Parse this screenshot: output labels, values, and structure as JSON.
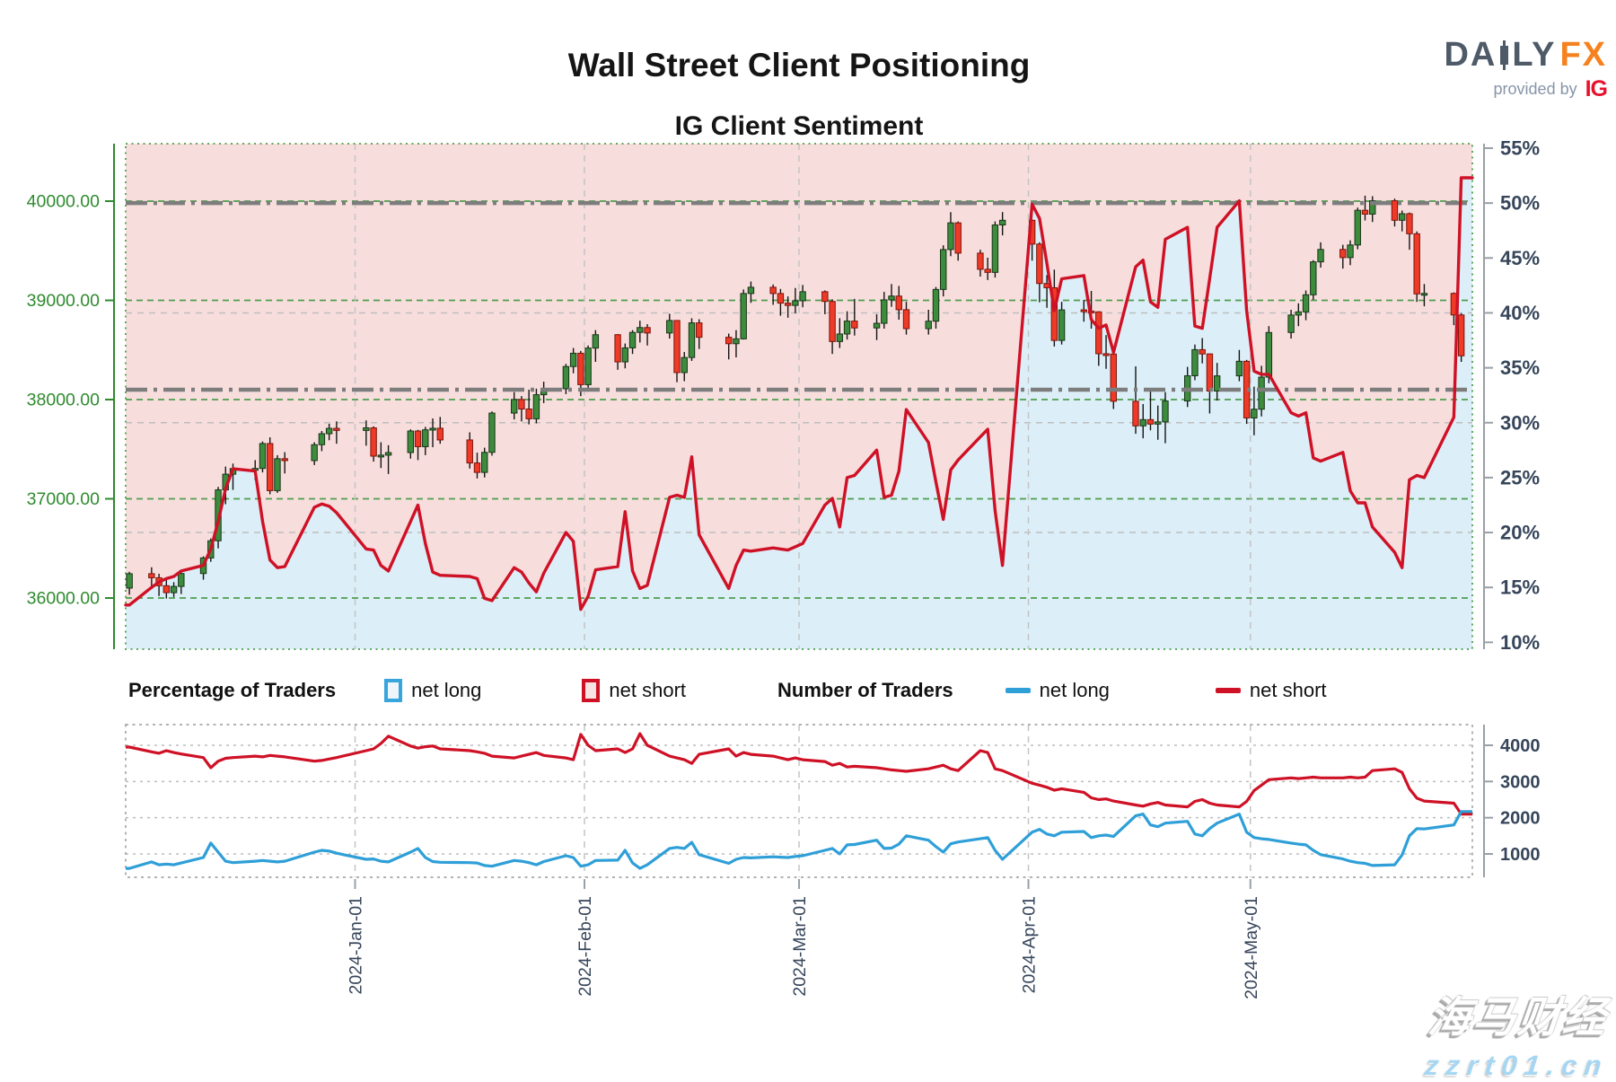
{
  "header": {
    "title": "Wall Street Client Positioning",
    "subtitle": "IG Client Sentiment",
    "logo": {
      "brand_prefix": "DA",
      "brand_mid": "LY",
      "brand_accent": "FX",
      "tagline": "provided by",
      "provider": "IG"
    }
  },
  "legend": {
    "pct_header": "Percentage of Traders",
    "pct_long_label": "net long",
    "pct_short_label": "net short",
    "num_header": "Number of Traders",
    "num_long_label": "net long",
    "num_short_label": "net short"
  },
  "watermark": {
    "line1": "海马财经",
    "line2": "zzrt01.cn"
  },
  "colors": {
    "long_blue": "#2f9fd8",
    "short_red": "#cf1126",
    "candle_up": "#3d8b3d",
    "candle_up_edge": "#173517",
    "candle_down": "#ee3a26",
    "candle_down_edge": "#7c140d",
    "wick": "#141414",
    "fill_long_area": "#dceef7",
    "fill_short_area": "#f8dddd",
    "price_axis_green": "#2e8b2e",
    "grid_green": "#4d9e4d",
    "grid_gray": "#bdbdbd",
    "month_grid": "#c4c4c4",
    "ref_dashdot": "#7d7d7d",
    "navy_text": "#36455a",
    "spine_gray": "#9aa0a6"
  },
  "chart_data": {
    "type": "candlestick+line",
    "title": "Wall Street Client Positioning",
    "subtitle": "IG Client Sentiment",
    "x_axis": {
      "range": [
        "2023-12-01",
        "2024-05-31"
      ],
      "month_ticks": [
        {
          "date": "2024-01-01",
          "label": "2024-Jan-01"
        },
        {
          "date": "2024-02-01",
          "label": "2024-Feb-01"
        },
        {
          "date": "2024-03-01",
          "label": "2024-Mar-01"
        },
        {
          "date": "2024-04-01",
          "label": "2024-Apr-01"
        },
        {
          "date": "2024-05-01",
          "label": "2024-May-01"
        }
      ]
    },
    "price_axis": {
      "side": "left",
      "ticks": [
        {
          "value": 40000,
          "label": "40000.00"
        },
        {
          "value": 39000,
          "label": "39000.00"
        },
        {
          "value": 38000,
          "label": "38000.00"
        },
        {
          "value": 37000,
          "label": "37000.00"
        },
        {
          "value": 36000,
          "label": "36000.00"
        }
      ]
    },
    "pct_axis": {
      "side": "right",
      "range": [
        10,
        55
      ],
      "ticks": [
        {
          "value": 55,
          "label": "55%"
        },
        {
          "value": 50,
          "label": "50%"
        },
        {
          "value": 45,
          "label": "45%"
        },
        {
          "value": 40,
          "label": "40%"
        },
        {
          "value": 35,
          "label": "35%"
        },
        {
          "value": 30,
          "label": "30%"
        },
        {
          "value": 25,
          "label": "25%"
        },
        {
          "value": 20,
          "label": "20%"
        },
        {
          "value": 15,
          "label": "15%"
        },
        {
          "value": 10,
          "label": "10%"
        }
      ],
      "gridlines": [
        40,
        30,
        20
      ],
      "reference_levels": [
        50,
        33
      ]
    },
    "count_axis": {
      "side": "right",
      "ticks": [
        {
          "value": 4000,
          "label": "4000"
        },
        {
          "value": 3000,
          "label": "3000"
        },
        {
          "value": 2000,
          "label": "2000"
        },
        {
          "value": 1000,
          "label": "1000"
        }
      ]
    },
    "dates": [
      "2023-12-01",
      "2023-12-04",
      "2023-12-05",
      "2023-12-06",
      "2023-12-07",
      "2023-12-08",
      "2023-12-11",
      "2023-12-12",
      "2023-12-13",
      "2023-12-14",
      "2023-12-15",
      "2023-12-18",
      "2023-12-19",
      "2023-12-20",
      "2023-12-21",
      "2023-12-22",
      "2023-12-26",
      "2023-12-27",
      "2023-12-28",
      "2023-12-29",
      "2024-01-02",
      "2024-01-03",
      "2024-01-04",
      "2024-01-05",
      "2024-01-08",
      "2024-01-09",
      "2024-01-10",
      "2024-01-11",
      "2024-01-12",
      "2024-01-16",
      "2024-01-17",
      "2024-01-18",
      "2024-01-19",
      "2024-01-22",
      "2024-01-23",
      "2024-01-24",
      "2024-01-25",
      "2024-01-26",
      "2024-01-29",
      "2024-01-30",
      "2024-01-31",
      "2024-02-01",
      "2024-02-02",
      "2024-02-05",
      "2024-02-06",
      "2024-02-07",
      "2024-02-08",
      "2024-02-09",
      "2024-02-12",
      "2024-02-13",
      "2024-02-14",
      "2024-02-15",
      "2024-02-16",
      "2024-02-20",
      "2024-02-21",
      "2024-02-22",
      "2024-02-23",
      "2024-02-26",
      "2024-02-27",
      "2024-02-28",
      "2024-02-29",
      "2024-03-01",
      "2024-03-04",
      "2024-03-05",
      "2024-03-06",
      "2024-03-07",
      "2024-03-08",
      "2024-03-11",
      "2024-03-12",
      "2024-03-13",
      "2024-03-14",
      "2024-03-15",
      "2024-03-18",
      "2024-03-19",
      "2024-03-20",
      "2024-03-21",
      "2024-03-22",
      "2024-03-25",
      "2024-03-26",
      "2024-03-27",
      "2024-03-28",
      "2024-04-01",
      "2024-04-02",
      "2024-04-03",
      "2024-04-04",
      "2024-04-05",
      "2024-04-08",
      "2024-04-09",
      "2024-04-10",
      "2024-04-11",
      "2024-04-12",
      "2024-04-15",
      "2024-04-16",
      "2024-04-17",
      "2024-04-18",
      "2024-04-19",
      "2024-04-22",
      "2024-04-23",
      "2024-04-24",
      "2024-04-25",
      "2024-04-26",
      "2024-04-29",
      "2024-04-30",
      "2024-05-01",
      "2024-05-02",
      "2024-05-03",
      "2024-05-06",
      "2024-05-07",
      "2024-05-08",
      "2024-05-09",
      "2024-05-10",
      "2024-05-13",
      "2024-05-14",
      "2024-05-15",
      "2024-05-16",
      "2024-05-17",
      "2024-05-20",
      "2024-05-21",
      "2024-05-22",
      "2024-05-23",
      "2024-05-24",
      "2024-05-28",
      "2024-05-29"
    ],
    "candles": [
      [
        36100,
        36264,
        36034,
        36245
      ],
      [
        36245,
        36310,
        36090,
        36204
      ],
      [
        36204,
        36245,
        36020,
        36124
      ],
      [
        36124,
        36190,
        35995,
        36054
      ],
      [
        36054,
        36160,
        36010,
        36117
      ],
      [
        36117,
        36270,
        36040,
        36247
      ],
      [
        36247,
        36420,
        36185,
        36404
      ],
      [
        36404,
        36600,
        36365,
        36577
      ],
      [
        36577,
        37120,
        36500,
        37090
      ],
      [
        37090,
        37325,
        36945,
        37248
      ],
      [
        37248,
        37355,
        37090,
        37305
      ],
      [
        37305,
        37390,
        37190,
        37306
      ],
      [
        37306,
        37578,
        37266,
        37557
      ],
      [
        37557,
        37620,
        37046,
        37082
      ],
      [
        37082,
        37440,
        37060,
        37404
      ],
      [
        37404,
        37470,
        37255,
        37385
      ],
      [
        37385,
        37570,
        37340,
        37545
      ],
      [
        37545,
        37683,
        37480,
        37656
      ],
      [
        37656,
        37756,
        37590,
        37710
      ],
      [
        37710,
        37780,
        37555,
        37689
      ],
      [
        37689,
        37790,
        37535,
        37715
      ],
      [
        37715,
        37730,
        37375,
        37430
      ],
      [
        37430,
        37570,
        37310,
        37440
      ],
      [
        37440,
        37540,
        37250,
        37466
      ],
      [
        37466,
        37700,
        37405,
        37683
      ],
      [
        37683,
        37695,
        37390,
        37525
      ],
      [
        37525,
        37725,
        37440,
        37695
      ],
      [
        37695,
        37810,
        37520,
        37711
      ],
      [
        37711,
        37825,
        37555,
        37593
      ],
      [
        37593,
        37670,
        37305,
        37361
      ],
      [
        37361,
        37465,
        37205,
        37266
      ],
      [
        37266,
        37515,
        37215,
        37468
      ],
      [
        37468,
        37880,
        37435,
        37864
      ],
      [
        37864,
        38075,
        37800,
        38001
      ],
      [
        38001,
        38035,
        37780,
        37905
      ],
      [
        37905,
        38100,
        37750,
        37806
      ],
      [
        37806,
        38110,
        37760,
        38049
      ],
      [
        38049,
        38180,
        37965,
        38109
      ],
      [
        38109,
        38360,
        38055,
        38333
      ],
      [
        38333,
        38520,
        38265,
        38467
      ],
      [
        38467,
        38490,
        38035,
        38150
      ],
      [
        38150,
        38545,
        38080,
        38519
      ],
      [
        38519,
        38700,
        38380,
        38654
      ],
      [
        38654,
        38660,
        38300,
        38380
      ],
      [
        38380,
        38565,
        38315,
        38521
      ],
      [
        38521,
        38700,
        38460,
        38677
      ],
      [
        38677,
        38795,
        38575,
        38726
      ],
      [
        38726,
        38760,
        38545,
        38671
      ],
      [
        38671,
        38865,
        38615,
        38797
      ],
      [
        38797,
        38800,
        38175,
        38272
      ],
      [
        38272,
        38480,
        38185,
        38424
      ],
      [
        38424,
        38820,
        38390,
        38773
      ],
      [
        38773,
        38810,
        38510,
        38628
      ],
      [
        38628,
        38665,
        38405,
        38563
      ],
      [
        38563,
        38700,
        38425,
        38612
      ],
      [
        38612,
        39110,
        38605,
        39069
      ],
      [
        39069,
        39190,
        38975,
        39132
      ],
      [
        39132,
        39160,
        38955,
        39069
      ],
      [
        39069,
        39115,
        38845,
        38972
      ],
      [
        38972,
        39040,
        38825,
        38949
      ],
      [
        38949,
        39125,
        38870,
        38996
      ],
      [
        38996,
        39155,
        38930,
        39087
      ],
      [
        39087,
        39100,
        38860,
        38989
      ],
      [
        38989,
        39010,
        38460,
        38585
      ],
      [
        38585,
        38820,
        38520,
        38661
      ],
      [
        38661,
        38890,
        38605,
        38791
      ],
      [
        38791,
        39015,
        38645,
        38722
      ],
      [
        38722,
        38860,
        38600,
        38769
      ],
      [
        38769,
        39085,
        38715,
        39005
      ],
      [
        39005,
        39165,
        38935,
        39043
      ],
      [
        39043,
        39145,
        38805,
        38906
      ],
      [
        38906,
        38985,
        38655,
        38715
      ],
      [
        38715,
        38905,
        38655,
        38790
      ],
      [
        38790,
        39135,
        38715,
        39110
      ],
      [
        39110,
        39555,
        39040,
        39512
      ],
      [
        39512,
        39889,
        39445,
        39781
      ],
      [
        39781,
        39795,
        39400,
        39476
      ],
      [
        39476,
        39510,
        39240,
        39313
      ],
      [
        39313,
        39430,
        39205,
        39282
      ],
      [
        39282,
        39795,
        39230,
        39760
      ],
      [
        39760,
        39890,
        39655,
        39807
      ],
      [
        39807,
        39815,
        39400,
        39567
      ],
      [
        39567,
        39585,
        38980,
        39170
      ],
      [
        39170,
        39255,
        38925,
        39127
      ],
      [
        39127,
        39310,
        38535,
        38596
      ],
      [
        38596,
        38985,
        38555,
        38904
      ],
      [
        38904,
        39005,
        38785,
        38892
      ],
      [
        38892,
        39095,
        38715,
        38884
      ],
      [
        38884,
        38890,
        38340,
        38462
      ],
      [
        38462,
        38650,
        38310,
        38459
      ],
      [
        38459,
        38515,
        37905,
        37983
      ],
      [
        37983,
        38335,
        37655,
        37735
      ],
      [
        37735,
        37955,
        37610,
        37798
      ],
      [
        37798,
        38085,
        37690,
        37753
      ],
      [
        37753,
        37940,
        37595,
        37775
      ],
      [
        37775,
        38075,
        37560,
        37986
      ],
      [
        37986,
        38330,
        37925,
        38240
      ],
      [
        38240,
        38555,
        38195,
        38503
      ],
      [
        38503,
        38620,
        38365,
        38460
      ],
      [
        38460,
        38465,
        37860,
        38086
      ],
      [
        38086,
        38370,
        37990,
        38239
      ],
      [
        38239,
        38500,
        38185,
        38386
      ],
      [
        38386,
        38400,
        37755,
        37815
      ],
      [
        37815,
        38130,
        37640,
        37903
      ],
      [
        37903,
        38340,
        37830,
        38226
      ],
      [
        38226,
        38740,
        38165,
        38676
      ],
      [
        38676,
        38905,
        38615,
        38852
      ],
      [
        38852,
        38970,
        38740,
        38884
      ],
      [
        38884,
        39100,
        38800,
        39056
      ],
      [
        39056,
        39405,
        39005,
        39388
      ],
      [
        39388,
        39585,
        39330,
        39513
      ],
      [
        39513,
        39560,
        39320,
        39431
      ],
      [
        39431,
        39605,
        39355,
        39558
      ],
      [
        39558,
        39935,
        39515,
        39908
      ],
      [
        39908,
        40055,
        39805,
        39869
      ],
      [
        39869,
        40050,
        39790,
        40004
      ],
      [
        40004,
        40025,
        39745,
        39807
      ],
      [
        39807,
        39905,
        39695,
        39873
      ],
      [
        39873,
        39885,
        39510,
        39671
      ],
      [
        39671,
        39695,
        38985,
        39065
      ],
      [
        39065,
        39165,
        38940,
        39070
      ],
      [
        39070,
        39080,
        38750,
        38853
      ],
      [
        38853,
        38870,
        38380,
        38441
      ]
    ],
    "pct_net_long": [
      13.4,
      15.0,
      15.5,
      15.8,
      16.0,
      16.5,
      17.0,
      18.5,
      21.0,
      24.0,
      25.8,
      25.6,
      21.0,
      17.5,
      16.8,
      16.9,
      22.3,
      22.6,
      22.4,
      21.8,
      18.5,
      18.4,
      17.0,
      16.5,
      21.0,
      22.5,
      19.0,
      16.4,
      16.1,
      16.0,
      15.8,
      14.0,
      13.8,
      16.8,
      16.4,
      15.4,
      14.6,
      16.3,
      20.0,
      19.2,
      13.0,
      14.2,
      16.6,
      16.9,
      21.9,
      16.5,
      14.9,
      15.2,
      23.2,
      23.4,
      23.2,
      26.9,
      19.8,
      14.9,
      17.0,
      18.4,
      18.3,
      18.6,
      18.5,
      18.4,
      18.7,
      19.0,
      22.5,
      23.1,
      20.5,
      25.0,
      25.2,
      27.5,
      23.2,
      23.4,
      25.6,
      31.2,
      28.2,
      24.6,
      21.2,
      25.7,
      26.6,
      28.7,
      29.4,
      22.0,
      17.0,
      49.9,
      48.6,
      44.5,
      40.2,
      43.1,
      43.4,
      39.4,
      38.6,
      38.9,
      36.4,
      44.2,
      44.8,
      41.0,
      40.5,
      46.7,
      47.8,
      38.8,
      38.6,
      43.1,
      47.8,
      50.2,
      40.2,
      34.7,
      34.4,
      34.4,
      30.9,
      30.6,
      30.9,
      26.8,
      26.5,
      27.3,
      23.8,
      22.7,
      22.7,
      20.5,
      18.2,
      16.8,
      24.8,
      25.2,
      25.0,
      30.5,
      52.3
    ],
    "traders_net_long": [
      600,
      780,
      700,
      720,
      700,
      750,
      900,
      1300,
      1050,
      800,
      760,
      800,
      820,
      800,
      780,
      800,
      1050,
      1100,
      1080,
      1020,
      850,
      860,
      800,
      780,
      1050,
      1150,
      900,
      790,
      770,
      760,
      750,
      680,
      660,
      820,
      800,
      760,
      700,
      790,
      950,
      900,
      660,
      700,
      820,
      830,
      1100,
      750,
      600,
      700,
      1150,
      1180,
      1150,
      1320,
      980,
      740,
      850,
      900,
      890,
      920,
      910,
      900,
      930,
      950,
      1100,
      1150,
      1000,
      1250,
      1260,
      1380,
      1150,
      1160,
      1270,
      1500,
      1380,
      1200,
      1050,
      1280,
      1330,
      1420,
      1450,
      1100,
      850,
      1600,
      1680,
      1550,
      1500,
      1600,
      1620,
      1450,
      1500,
      1520,
      1480,
      2050,
      2100,
      1800,
      1750,
      1850,
      1900,
      1550,
      1500,
      1700,
      1850,
      2100,
      1600,
      1450,
      1420,
      1400,
      1300,
      1270,
      1250,
      1100,
      980,
      860,
      800,
      760,
      740,
      680,
      700,
      970,
      1500,
      1700,
      1690,
      1800,
      2170
    ],
    "traders_net_short": [
      3950,
      3820,
      3780,
      3850,
      3800,
      3760,
      3660,
      3380,
      3560,
      3640,
      3660,
      3700,
      3680,
      3720,
      3700,
      3680,
      3560,
      3580,
      3620,
      3660,
      3850,
      3900,
      4050,
      4250,
      3980,
      3920,
      3960,
      3980,
      3900,
      3850,
      3820,
      3780,
      3700,
      3650,
      3700,
      3750,
      3800,
      3720,
      3650,
      3600,
      4300,
      4000,
      3850,
      3900,
      3800,
      3900,
      4320,
      4000,
      3700,
      3650,
      3600,
      3500,
      3750,
      3900,
      3700,
      3800,
      3750,
      3700,
      3650,
      3600,
      3650,
      3600,
      3550,
      3450,
      3500,
      3400,
      3420,
      3380,
      3350,
      3320,
      3300,
      3280,
      3350,
      3400,
      3450,
      3350,
      3300,
      3850,
      3800,
      3350,
      3300,
      2950,
      2900,
      2840,
      2760,
      2800,
      2700,
      2550,
      2500,
      2520,
      2460,
      2350,
      2320,
      2380,
      2420,
      2350,
      2300,
      2450,
      2500,
      2400,
      2350,
      2300,
      2450,
      2750,
      2900,
      3050,
      3100,
      3080,
      3100,
      3120,
      3100,
      3100,
      3120,
      3100,
      3120,
      3300,
      3350,
      3250,
      2800,
      2540,
      2460,
      2400,
      2100
    ]
  }
}
